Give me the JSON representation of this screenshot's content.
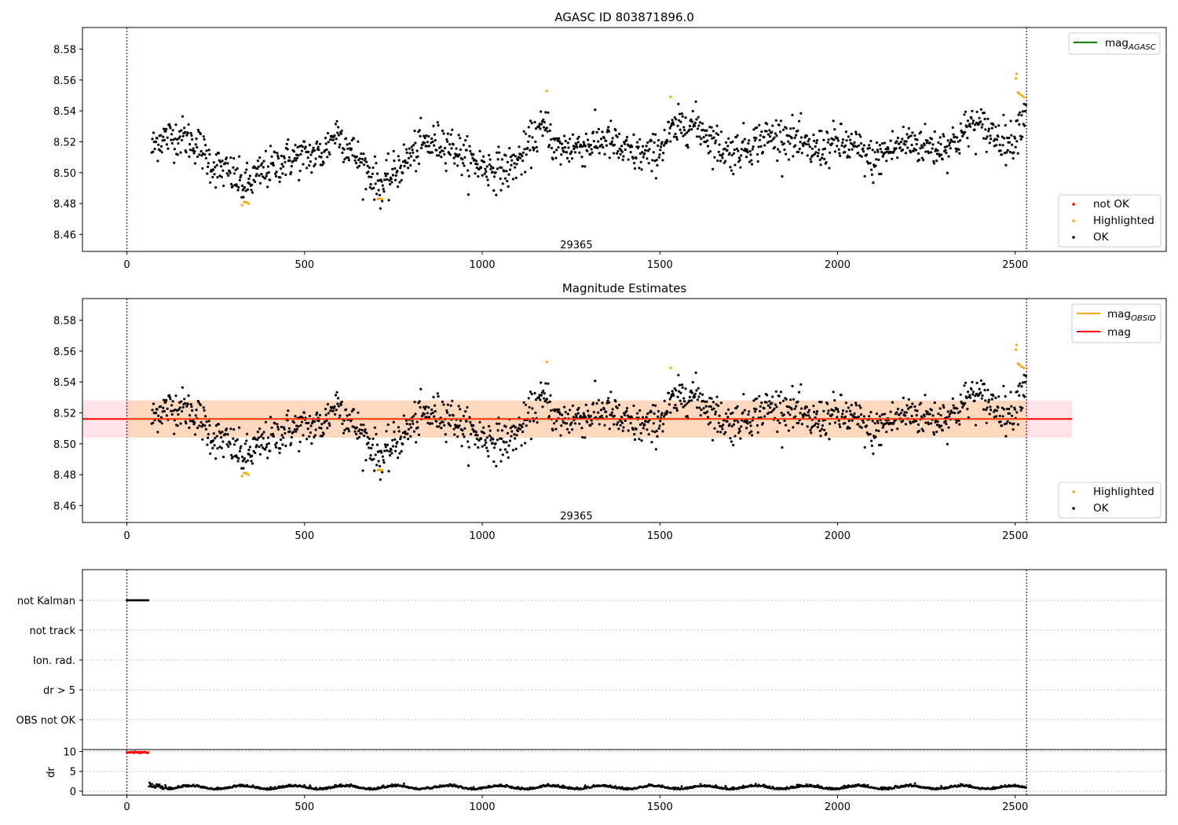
{
  "chart_data": [
    {
      "type": "scatter",
      "title": "AGASC ID 803871896.0",
      "xlim": [
        -125,
        2925
      ],
      "ylim": [
        8.449,
        8.594
      ],
      "xticks": [
        0,
        500,
        1000,
        1500,
        2000,
        2500
      ],
      "yticks": [
        8.46,
        8.48,
        8.5,
        8.52,
        8.54,
        8.56,
        8.58
      ],
      "vlines": [
        0,
        2532
      ],
      "annotation": {
        "text": "29365",
        "x": 1265,
        "y": 8.451
      },
      "line_legend": [
        {
          "label": "mag",
          "sub": "AGASC",
          "color": "#008000"
        }
      ],
      "point_legend": [
        {
          "label": "not OK",
          "color": "#ff0000"
        },
        {
          "label": "Highlighted",
          "color": "#ffa500"
        },
        {
          "label": "OK",
          "color": "#000000"
        }
      ],
      "series": [
        {
          "label": "OK",
          "color": "#000000",
          "x_start": 70,
          "x_end": 2530,
          "n": 1450,
          "shape": "obs1"
        },
        {
          "label": "Highlighted",
          "color": "#ffa500",
          "points": [
            [
              324,
              8.479
            ],
            [
              330,
              8.481
            ],
            [
              336,
              8.481
            ],
            [
              342,
              8.48
            ],
            [
              706,
              8.483
            ],
            [
              712,
              8.483
            ],
            [
              718,
              8.483
            ],
            [
              1182,
              8.553
            ],
            [
              1530,
              8.549
            ],
            [
              2502,
              8.561
            ],
            [
              2504,
              8.564
            ],
            [
              2508,
              8.552
            ],
            [
              2512,
              8.551
            ],
            [
              2518,
              8.55
            ],
            [
              2524,
              8.549
            ]
          ]
        }
      ]
    },
    {
      "type": "scatter",
      "title": "Magnitude Estimates",
      "xlim": [
        -125,
        2925
      ],
      "ylim": [
        8.449,
        8.594
      ],
      "xticks": [
        0,
        500,
        1000,
        1500,
        2000,
        2500
      ],
      "yticks": [
        8.46,
        8.48,
        8.5,
        8.52,
        8.54,
        8.56,
        8.58
      ],
      "vlines": [
        0,
        2532
      ],
      "annotation": {
        "text": "29365",
        "x": 1265,
        "y": 8.451
      },
      "mag": 8.516,
      "mag_band": [
        8.504,
        8.528
      ],
      "band_x": [
        -125,
        2660
      ],
      "obsid_band_x": [
        0,
        2532
      ],
      "line_legend": [
        {
          "label": "mag",
          "sub": "OBSID",
          "color": "#ffa500"
        },
        {
          "label": "mag",
          "sub": "",
          "color": "#ff0000"
        }
      ],
      "point_legend": [
        {
          "label": "Highlighted",
          "color": "#ffa500"
        },
        {
          "label": "OK",
          "color": "#000000"
        }
      ],
      "series": [
        {
          "label": "OK",
          "color": "#000000",
          "x_start": 70,
          "x_end": 2530,
          "n": 1450,
          "shape": "obs1"
        },
        {
          "label": "Highlighted",
          "color": "#ffa500",
          "points": [
            [
              324,
              8.479
            ],
            [
              330,
              8.481
            ],
            [
              336,
              8.481
            ],
            [
              342,
              8.48
            ],
            [
              706,
              8.483
            ],
            [
              712,
              8.483
            ],
            [
              718,
              8.483
            ],
            [
              1182,
              8.553
            ],
            [
              1530,
              8.549
            ],
            [
              2502,
              8.561
            ],
            [
              2504,
              8.564
            ],
            [
              2508,
              8.552
            ],
            [
              2512,
              8.551
            ],
            [
              2518,
              8.55
            ],
            [
              2524,
              8.549
            ]
          ]
        }
      ]
    },
    {
      "type": "scatter",
      "title": "",
      "xlim": [
        -125,
        2925
      ],
      "categories": [
        "not Kalman",
        "not track",
        "Ion. rad.",
        "dr > 5",
        "OBS not OK"
      ],
      "vlines": [
        0,
        2532
      ],
      "flags": [
        {
          "category": "not Kalman",
          "x_start": 0,
          "x_end": 62,
          "color": "#000000"
        }
      ]
    },
    {
      "type": "scatter",
      "title": "",
      "xlim": [
        -125,
        2925
      ],
      "ylim": [
        -1,
        10.5
      ],
      "xticks": [
        0,
        500,
        1000,
        1500,
        2000,
        2500
      ],
      "yticks": [
        0,
        5,
        10
      ],
      "ylabel": "dr",
      "vlines": [
        0,
        2532
      ],
      "series": [
        {
          "label": "dr high",
          "color": "#ff0000",
          "x_start": 0,
          "x_end": 62,
          "y": 9.8
        },
        {
          "label": "dr",
          "color": "#000000",
          "x_start": 62,
          "x_end": 2530,
          "n": 1400
        }
      ]
    }
  ]
}
